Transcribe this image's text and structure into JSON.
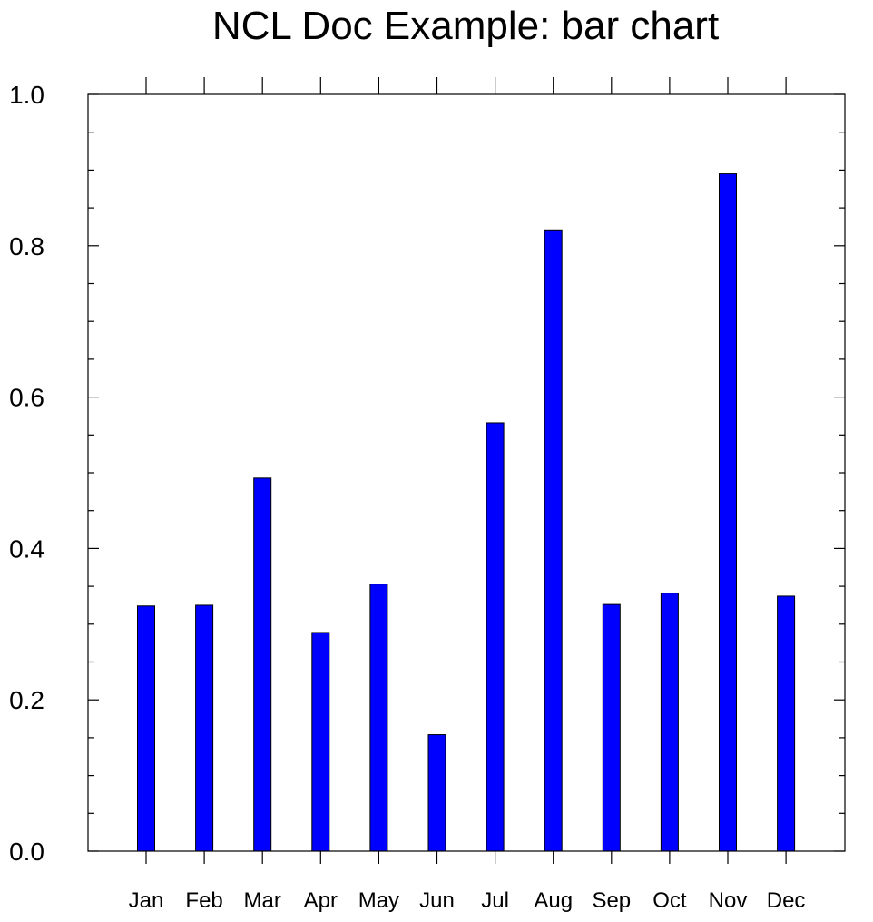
{
  "chart_data": {
    "type": "bar",
    "title": "NCL Doc Example: bar chart",
    "xlabel": "",
    "ylabel": "",
    "categories": [
      "Jan",
      "Feb",
      "Mar",
      "Apr",
      "May",
      "Jun",
      "Jul",
      "Aug",
      "Sep",
      "Oct",
      "Nov",
      "Dec"
    ],
    "values": [
      0.324,
      0.325,
      0.493,
      0.289,
      0.353,
      0.154,
      0.566,
      0.821,
      0.326,
      0.341,
      0.895,
      0.337
    ],
    "ylim": [
      0.0,
      1.0
    ],
    "yticks": [
      "0.0",
      "0.2",
      "0.4",
      "0.6",
      "0.8",
      "1.0"
    ],
    "bar_color": "#0000FF",
    "bar_edge_color": "#000000",
    "grid": false,
    "legend": "none"
  }
}
